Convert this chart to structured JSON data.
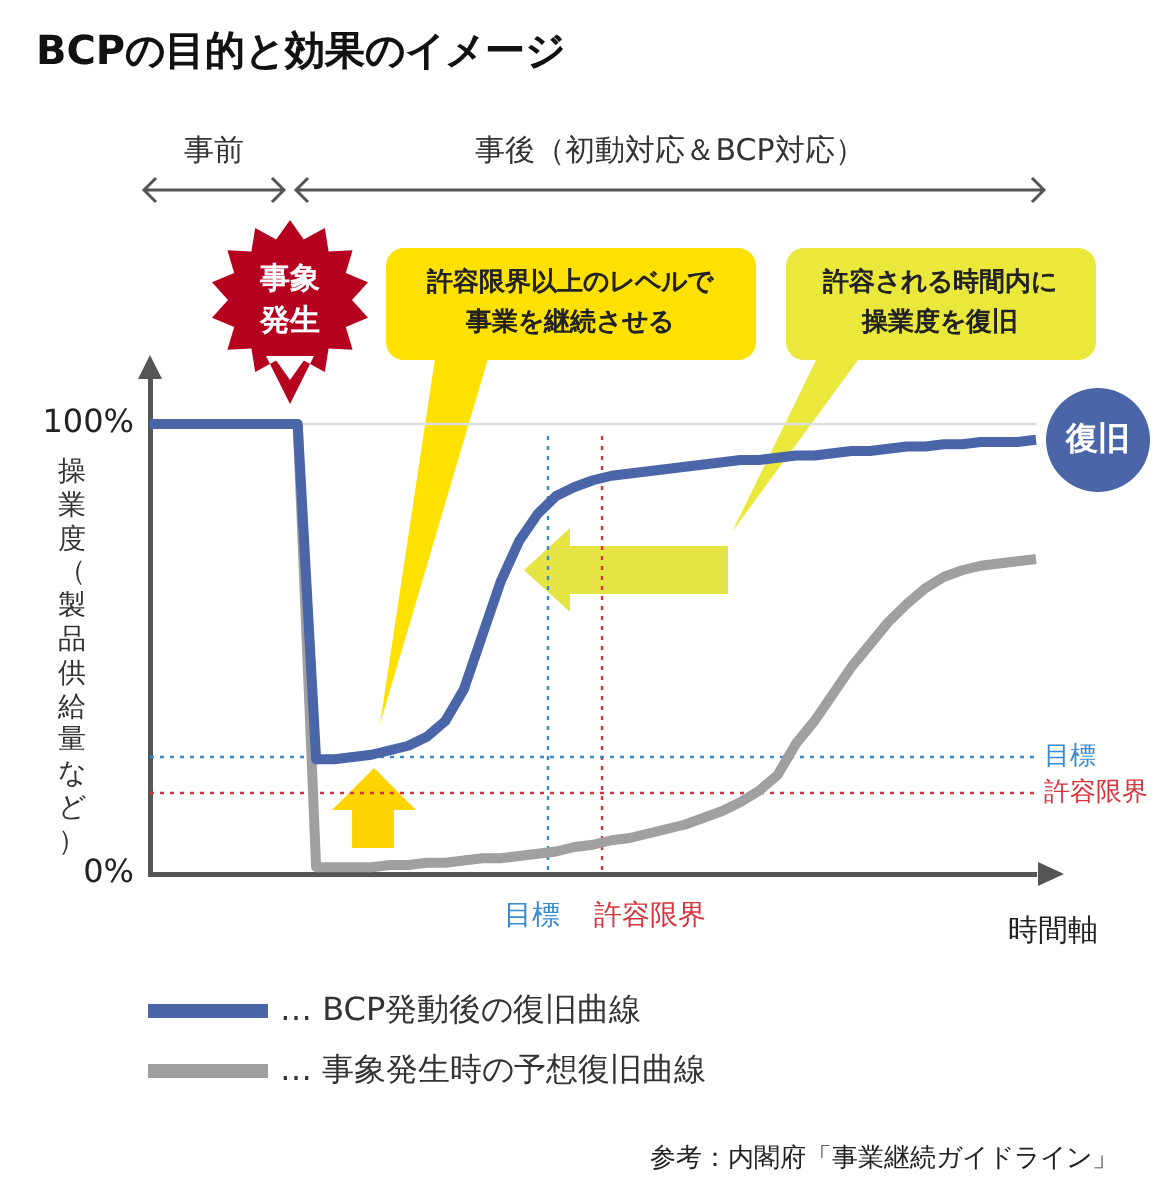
{
  "chart_data": {
    "type": "line",
    "title": "BCPの目的と効果のイメージ",
    "xlabel": "時間軸",
    "ylabel": "操業度（製品供給量など）",
    "categories": [
      null,
      null,
      null,
      null,
      null,
      null,
      null,
      null,
      null,
      null,
      null,
      null,
      null,
      null,
      null,
      null,
      null,
      null,
      null,
      null,
      null,
      null,
      null,
      null,
      null,
      null,
      null,
      null,
      null,
      null,
      null,
      null,
      null,
      null,
      null,
      null,
      null,
      null,
      null,
      null,
      null,
      null,
      null,
      null,
      null,
      null,
      null,
      null,
      null
    ],
    "ylim": [
      0,
      110
    ],
    "yticks": [
      {
        "value": 0,
        "label": "0%"
      },
      {
        "value": 100,
        "label": "100%"
      }
    ],
    "tick_labels": "y",
    "legend": "bottom",
    "marker": "none",
    "line_style": "solid",
    "series": [
      {
        "name": "… BCP発動後の復旧曲線",
        "color": "#4a65a8",
        "values": [
          100,
          100,
          100,
          100,
          100,
          100,
          100,
          100,
          100,
          25.5,
          25.5,
          26,
          26.5,
          27.5,
          28.5,
          30.5,
          34,
          41,
          53,
          65,
          74,
          80,
          84,
          86,
          87.5,
          88.5,
          89,
          89.5,
          90,
          90.5,
          91,
          91.5,
          92,
          92,
          92.5,
          93,
          93,
          93.5,
          94,
          94,
          94.5,
          95,
          95,
          95.5,
          95.5,
          96,
          96,
          96,
          96.5
        ]
      },
      {
        "name": "… 事象発生時の予想復旧曲線",
        "color": "#a0a0a0",
        "values": [
          null,
          null,
          null,
          null,
          null,
          null,
          null,
          null,
          100,
          1.5,
          1.5,
          1.5,
          1.5,
          2,
          2,
          2.5,
          2.5,
          3,
          3.5,
          3.5,
          4,
          4.5,
          5,
          6,
          6.5,
          7.5,
          8,
          9,
          10,
          11,
          12.5,
          14,
          16,
          18.5,
          22,
          29,
          34,
          40,
          46,
          51,
          56,
          60,
          63.5,
          66,
          67.5,
          68.5,
          69,
          69.5,
          70
        ]
      }
    ],
    "ref_lines": [
      {
        "axis": "y",
        "value": 100,
        "color": "#dddddd",
        "line_style": "solid"
      },
      {
        "axis": "y",
        "value": 26,
        "label": "目標",
        "color": "#3a8ad0",
        "line_style": "dotted"
      },
      {
        "axis": "y",
        "value": 18,
        "label": "許容限界",
        "color": "#d8323c",
        "line_style": "dotted"
      }
    ],
    "annotations": [
      "事前",
      "事後（初動対応＆BCP対応）",
      "事象発生",
      "許容限界以上のレベルで事業を継続させる",
      "許容される時間内に操業度を復旧",
      "復旧",
      "参考：内閣府「事業継続ガイドライン」",
      "目標",
      "許容限界"
    ]
  }
}
